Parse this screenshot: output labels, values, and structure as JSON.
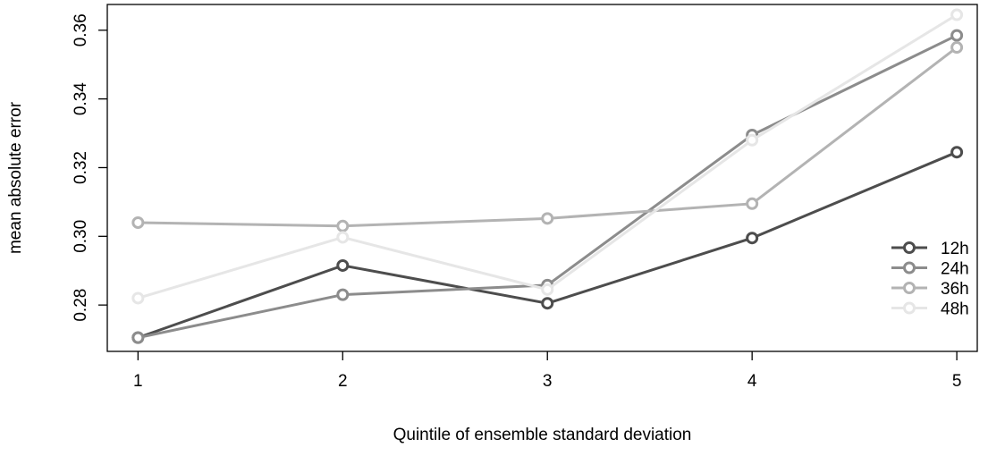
{
  "chart_data": {
    "type": "line",
    "title": "",
    "xlabel": "Quintile of ensemble standard deviation",
    "ylabel": "mean absolute error",
    "x": [
      1,
      2,
      3,
      4,
      5
    ],
    "x_ticks": [
      "1",
      "2",
      "3",
      "4",
      "5"
    ],
    "y_ticks": [
      "0.28",
      "0.30",
      "0.32",
      "0.34",
      "0.36"
    ],
    "y_tick_values": [
      0.28,
      0.3,
      0.32,
      0.34,
      0.36
    ],
    "xlim": [
      0.85,
      5.1
    ],
    "ylim": [
      0.2665,
      0.3675
    ],
    "grid": false,
    "legend_position": "bottom-right",
    "series": [
      {
        "name": "12h",
        "color": "#4d4d4d",
        "values": [
          0.2705,
          0.2915,
          0.2805,
          0.2995,
          0.3245
        ]
      },
      {
        "name": "24h",
        "color": "#8c8c8c",
        "values": [
          0.2705,
          0.283,
          0.2858,
          0.3295,
          0.3585
        ]
      },
      {
        "name": "36h",
        "color": "#b3b3b3",
        "values": [
          0.304,
          0.303,
          0.3052,
          0.3095,
          0.355
        ]
      },
      {
        "name": "48h",
        "color": "#e6e6e6",
        "values": [
          0.282,
          0.2997,
          0.2845,
          0.328,
          0.3645
        ]
      }
    ]
  }
}
